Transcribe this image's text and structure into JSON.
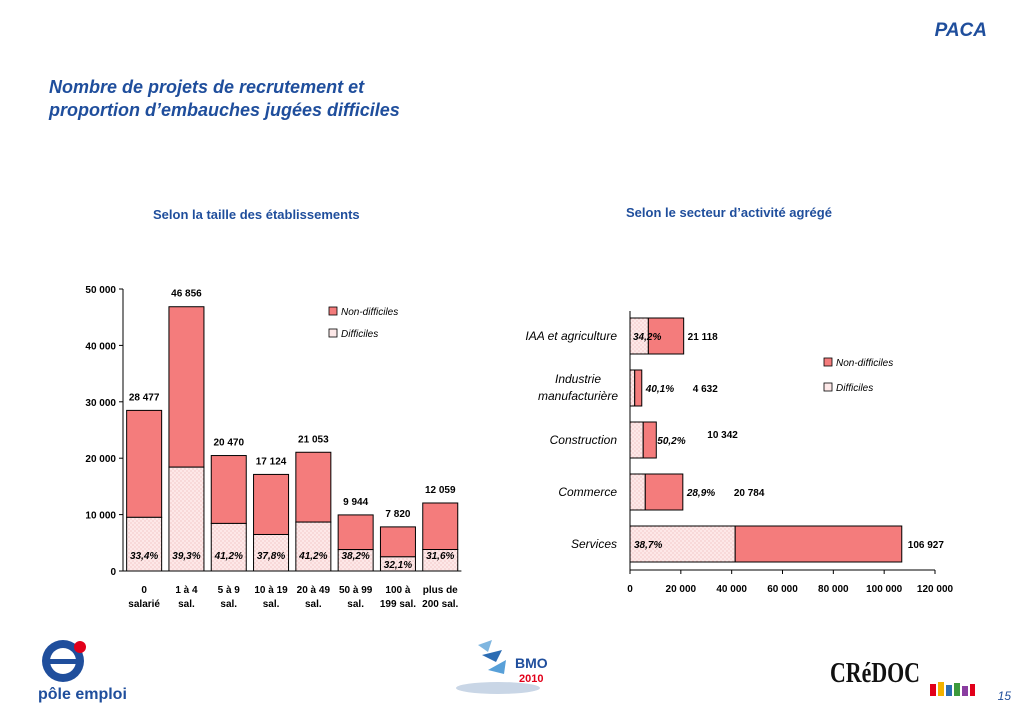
{
  "region": "PACA",
  "title_lines": [
    "Nombre de projets de recrutement et",
    "proportion d’embauches jugées difficiles"
  ],
  "page_number": "15",
  "colors": {
    "non_difficiles": "#f47c7c",
    "difficiles": "#fde8e8",
    "title_blue": "#1f4e9c",
    "outline": "#000000"
  },
  "logos": {
    "pole_emploi": "pôle emploi",
    "bmo": "BMO",
    "bmo_year": "2010",
    "credoc": "CRéDOC"
  },
  "chart_data": [
    {
      "type": "bar",
      "stacked": true,
      "title": "Selon la taille des établissements",
      "categories": [
        [
          "0",
          "salarié"
        ],
        [
          "1 à 4",
          "sal."
        ],
        [
          "5 à 9",
          "sal."
        ],
        [
          "10 à 19",
          "sal."
        ],
        [
          "20 à 49",
          "sal."
        ],
        [
          "50 à 99",
          "sal."
        ],
        [
          "100 à",
          "199 sal."
        ],
        [
          "plus de",
          "200 sal."
        ]
      ],
      "totals": [
        28477,
        46856,
        20470,
        17124,
        21053,
        9944,
        7820,
        12059
      ],
      "total_labels": [
        "28 477",
        "46 856",
        "20 470",
        "17 124",
        "21 053",
        "9 944",
        "7 820",
        "12 059"
      ],
      "difficult_share": [
        0.334,
        0.393,
        0.412,
        0.378,
        0.412,
        0.382,
        0.321,
        0.316
      ],
      "difficult_labels": [
        "33,4%",
        "39,3%",
        "41,2%",
        "37,8%",
        "41,2%",
        "38,2%",
        "32,1%",
        "31,6%"
      ],
      "series": [
        {
          "name": "Non-difficiles"
        },
        {
          "name": "Difficiles"
        }
      ],
      "ylim": [
        0,
        50000
      ],
      "yticks": [
        0,
        10000,
        20000,
        30000,
        40000,
        50000
      ],
      "ytick_labels": [
        "0",
        "10 000",
        "20 000",
        "30 000",
        "40 000",
        "50 000"
      ],
      "legend": "top-right",
      "grid": false
    },
    {
      "type": "bar",
      "orientation": "horizontal",
      "stacked": true,
      "title": "Selon le secteur d’activité agrégé",
      "categories": [
        [
          "IAA et agriculture"
        ],
        [
          "Industrie",
          "manufacturière"
        ],
        [
          "Construction"
        ],
        [
          "Commerce"
        ],
        [
          "Services"
        ]
      ],
      "totals": [
        21118,
        4632,
        10342,
        20784,
        106927
      ],
      "total_labels": [
        "21 118",
        "4 632",
        "10 342",
        "20 784",
        "106 927"
      ],
      "difficult_share": [
        0.342,
        0.401,
        0.502,
        0.289,
        0.387
      ],
      "difficult_labels": [
        "34,2%",
        "40,1%",
        "50,2%",
        "28,9%",
        "38,7%"
      ],
      "series": [
        {
          "name": "Non-difficiles"
        },
        {
          "name": "Difficiles"
        }
      ],
      "xlim": [
        0,
        120000
      ],
      "xticks": [
        0,
        20000,
        40000,
        60000,
        80000,
        100000,
        120000
      ],
      "xtick_labels": [
        "0",
        "20 000",
        "40 000",
        "60 000",
        "80 000",
        "100 000",
        "120 000"
      ],
      "legend": "right",
      "grid": false
    }
  ]
}
